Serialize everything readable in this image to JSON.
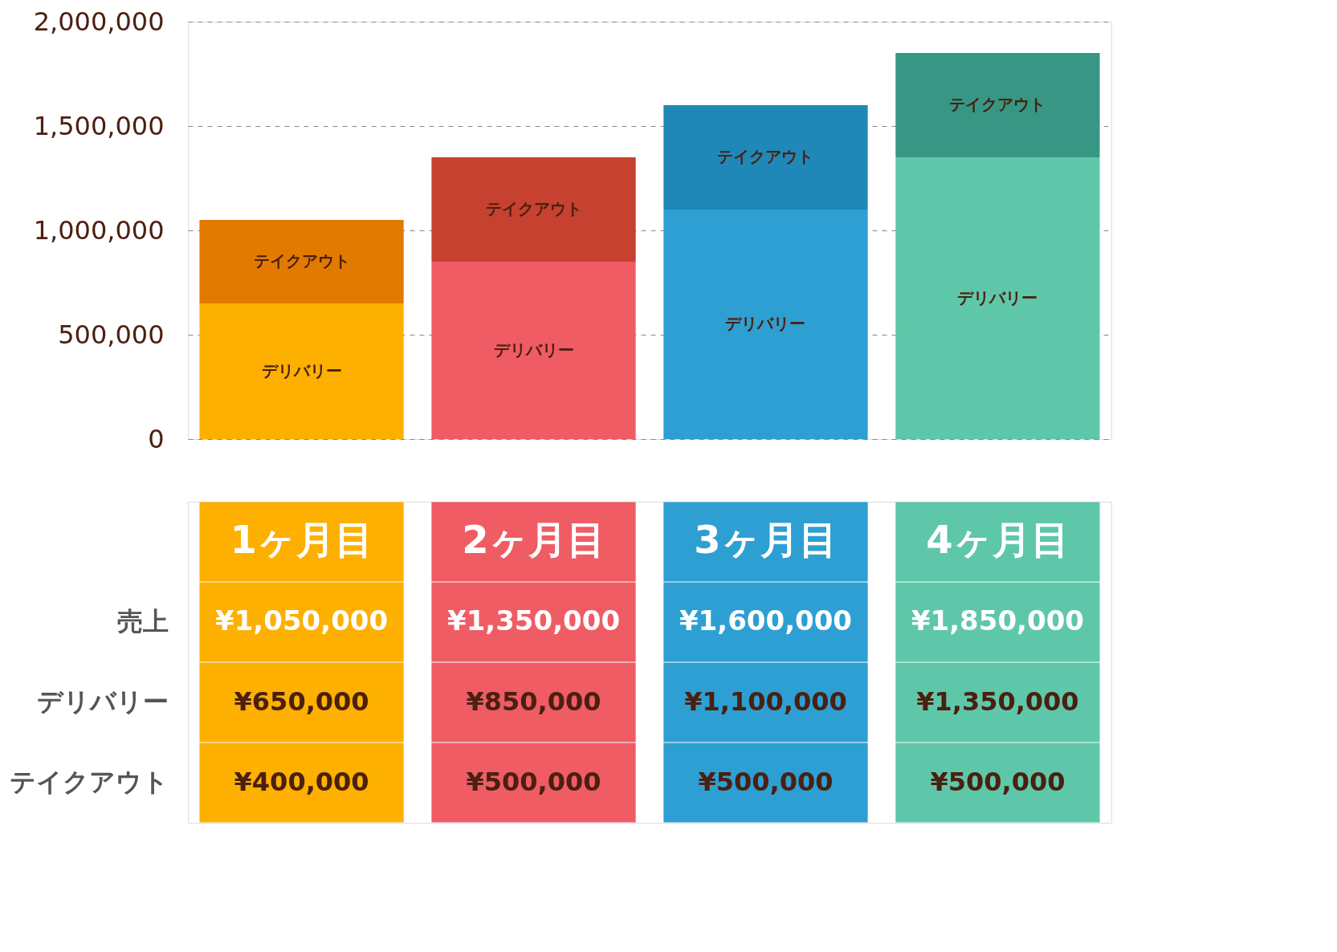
{
  "chart_data": {
    "type": "bar",
    "stacked": true,
    "grid": "y",
    "categories": [
      "1ヶ月目",
      "2ヶ月目",
      "3ヶ月目",
      "4ヶ月目"
    ],
    "series": [
      {
        "name": "デリバリー",
        "colors": [
          "#fdb000",
          "#ef5c64",
          "#2e9fd2",
          "#5fc7a9"
        ],
        "values": [
          650000,
          850000,
          1100000,
          1350000
        ],
        "value_labels": [
          "¥650,000",
          "¥850,000",
          "¥1,100,000",
          "¥1,350,000"
        ]
      },
      {
        "name": "テイクアウト",
        "colors": [
          "#e37a00",
          "#c64130",
          "#1f88b8",
          "#379684"
        ],
        "values": [
          400000,
          500000,
          500000,
          500000
        ],
        "value_labels": [
          "¥400,000",
          "¥500,000",
          "¥500,000",
          "¥500,000"
        ]
      }
    ],
    "annotations": [
      "売上",
      "¥1,050,000",
      "¥1,350,000",
      "¥1,600,000",
      "¥1,850,000"
    ],
    "ylim": [
      0,
      2000000
    ],
    "yticks": [
      0,
      {
        "value": 500000,
        "label": "500,000"
      },
      {
        "value": 1000000,
        "label": "1,000,000"
      },
      {
        "value": 1500000,
        "label": "1,500,000"
      },
      {
        "value": 2000000,
        "label": "2,000,000"
      }
    ]
  }
}
